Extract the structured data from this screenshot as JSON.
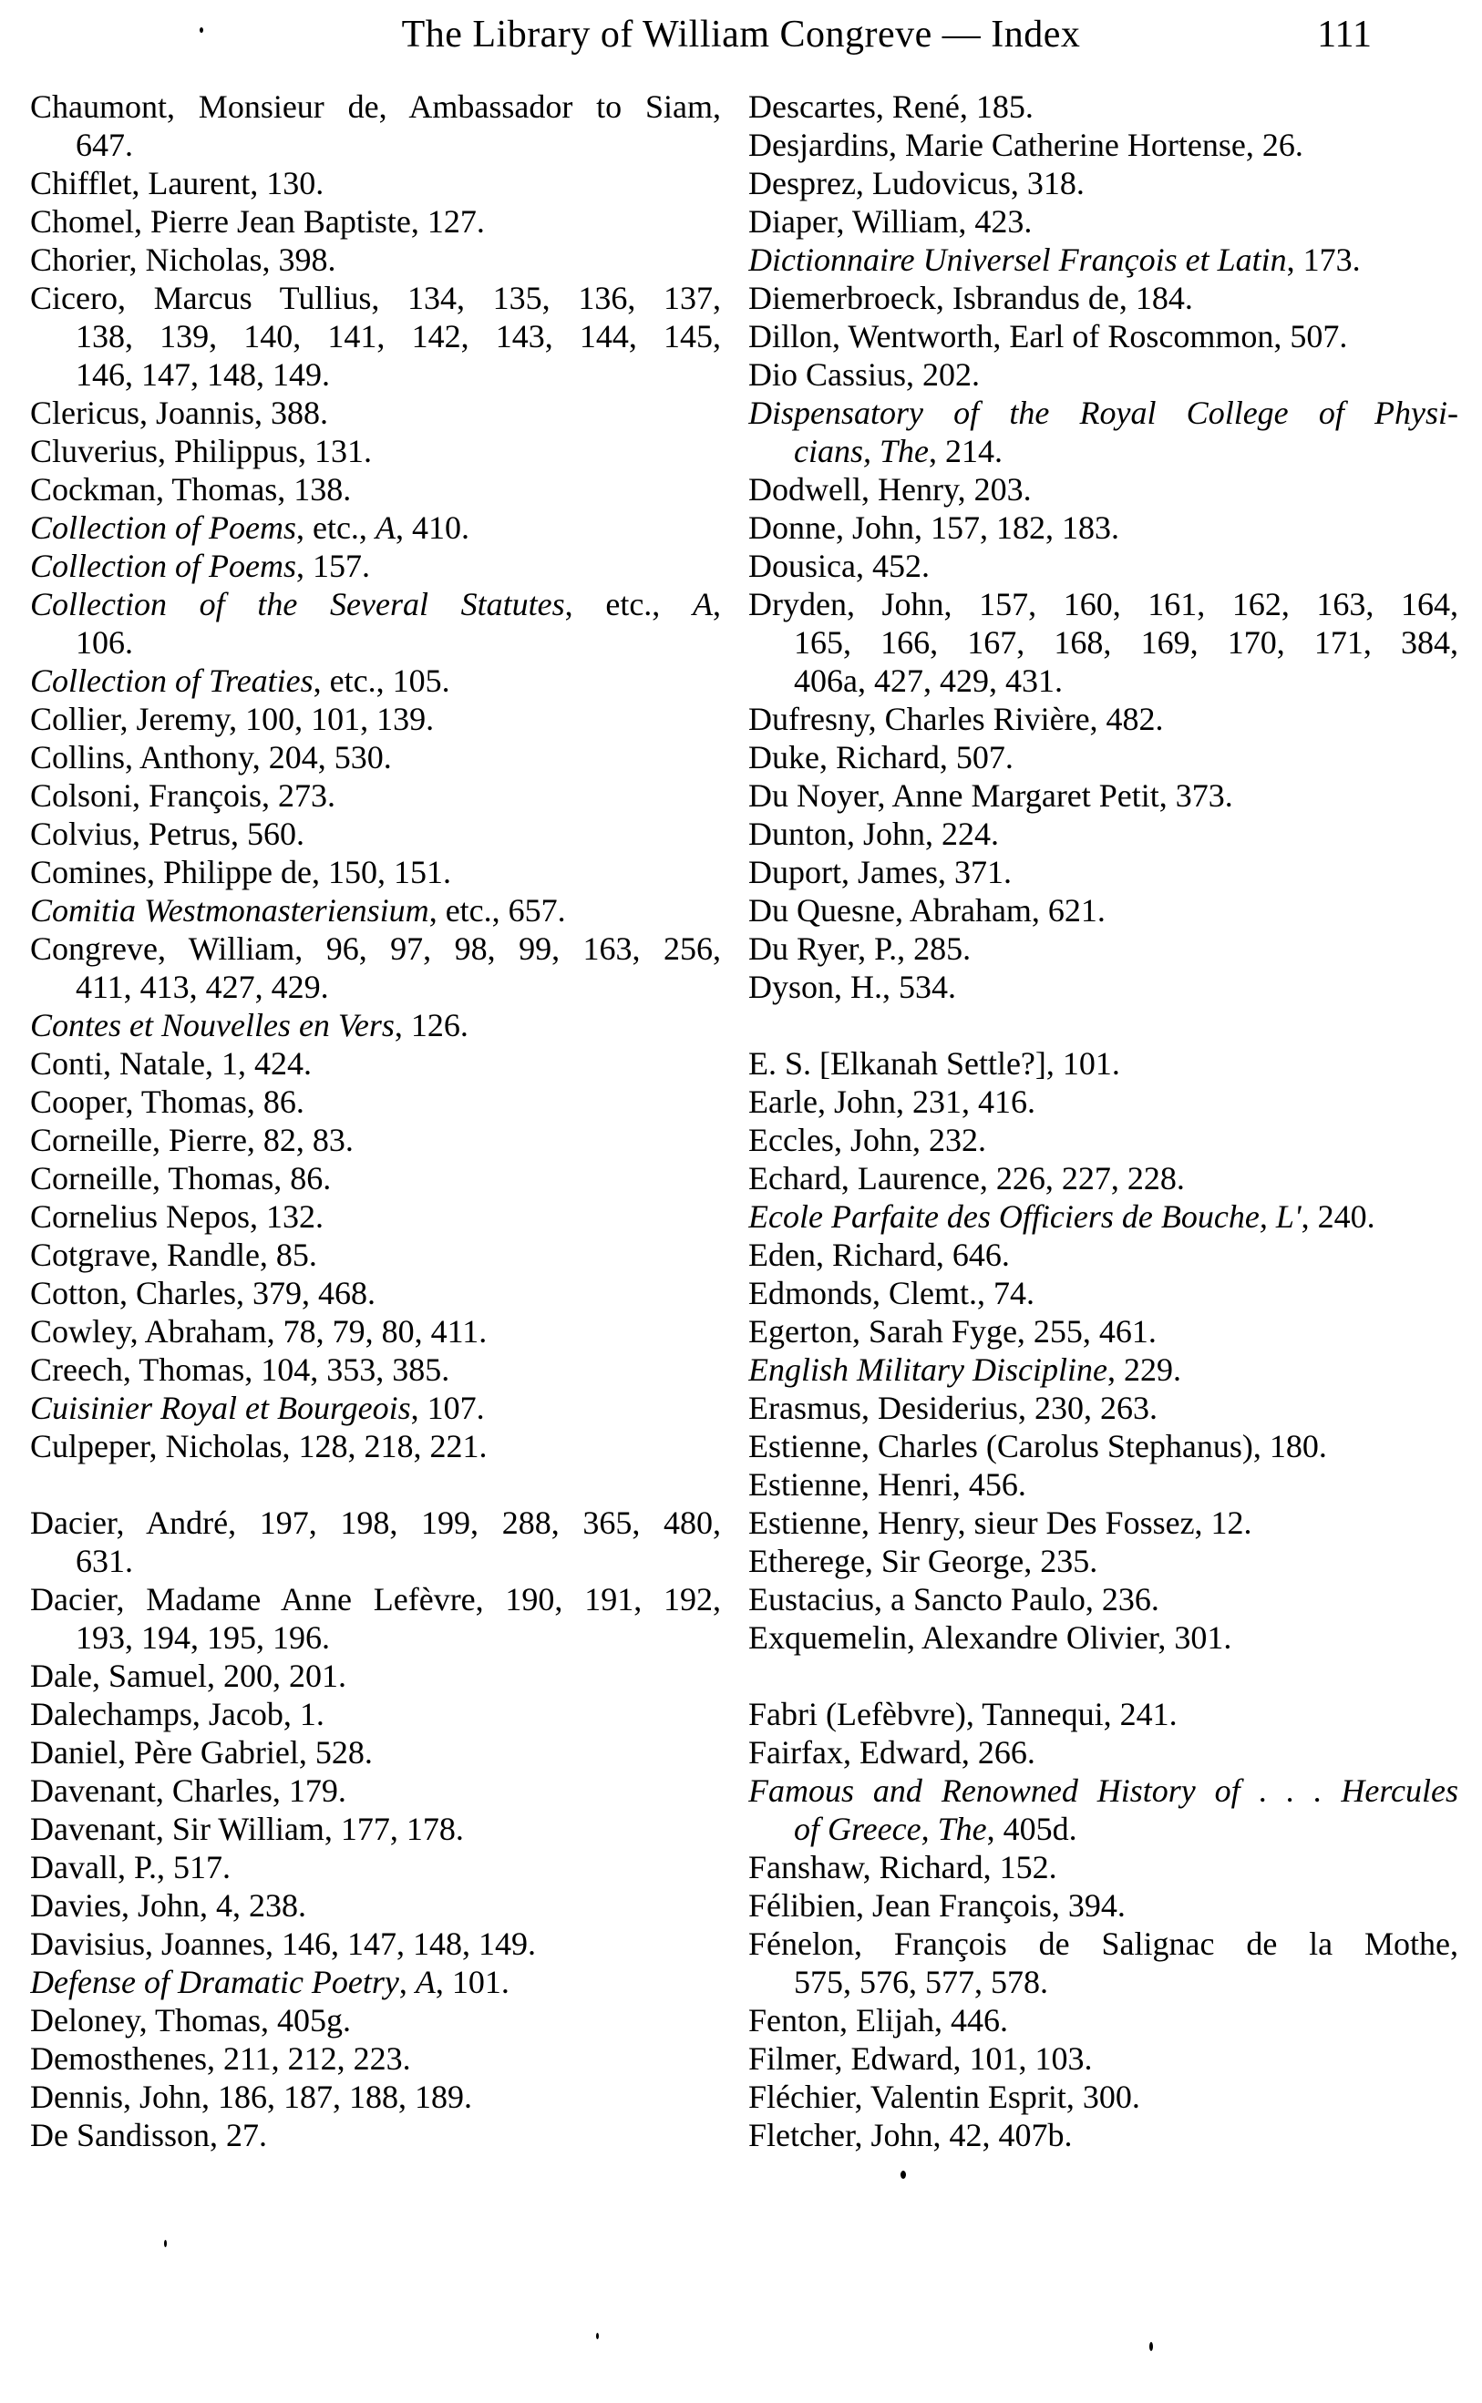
{
  "header": {
    "title": "The Library of William Congreve — Index",
    "page_number": "111"
  },
  "columns": {
    "left": [
      {
        "seg": [
          [
            "Chaumont, Monsieur de, Ambassador to Siam,",
            0
          ]
        ],
        "fill": 1
      },
      {
        "seg": [
          [
            "647.",
            0
          ]
        ],
        "ind": 1
      },
      {
        "seg": [
          [
            "Chifflet, Laurent, 130.",
            0
          ]
        ]
      },
      {
        "seg": [
          [
            "Chomel, Pierre Jean Baptiste, 127.",
            0
          ]
        ]
      },
      {
        "seg": [
          [
            "Chorier, Nicholas, 398.",
            0
          ]
        ]
      },
      {
        "seg": [
          [
            "Cicero, Marcus Tullius, 134, 135, 136, 137,",
            0
          ]
        ],
        "fill": 1
      },
      {
        "seg": [
          [
            "138, 139, 140, 141, 142, 143, 144, 145,",
            0
          ]
        ],
        "ind": 1,
        "fill": 1
      },
      {
        "seg": [
          [
            "146, 147, 148, 149.",
            0
          ]
        ],
        "ind": 1
      },
      {
        "seg": [
          [
            "Clericus, Joannis, 388.",
            0
          ]
        ]
      },
      {
        "seg": [
          [
            "Cluverius, Philippus, 131.",
            0
          ]
        ]
      },
      {
        "seg": [
          [
            "Cockman, Thomas, 138.",
            0
          ]
        ]
      },
      {
        "seg": [
          [
            "Collection of Poems",
            1
          ],
          [
            ", etc., ",
            0
          ],
          [
            "A",
            1
          ],
          [
            ", 410.",
            0
          ]
        ]
      },
      {
        "seg": [
          [
            "Collection of Poems",
            1
          ],
          [
            ", 157.",
            0
          ]
        ]
      },
      {
        "seg": [
          [
            "Collection of the Several Statutes",
            1
          ],
          [
            ", etc., ",
            0
          ],
          [
            "A",
            1
          ],
          [
            ",",
            0
          ]
        ],
        "fill": 1
      },
      {
        "seg": [
          [
            "106.",
            0
          ]
        ],
        "ind": 1
      },
      {
        "seg": [
          [
            "Collection of Treaties",
            1
          ],
          [
            ", etc., 105.",
            0
          ]
        ]
      },
      {
        "seg": [
          [
            "Collier, Jeremy, 100, 101, 139.",
            0
          ]
        ]
      },
      {
        "seg": [
          [
            "Collins, Anthony, 204, 530.",
            0
          ]
        ]
      },
      {
        "seg": [
          [
            "Colsoni, François, 273.",
            0
          ]
        ]
      },
      {
        "seg": [
          [
            "Colvius, Petrus, 560.",
            0
          ]
        ]
      },
      {
        "seg": [
          [
            "Comines, Philippe de, 150, 151.",
            0
          ]
        ]
      },
      {
        "seg": [
          [
            "Comitia Westmonasteriensium",
            1
          ],
          [
            ", etc., 657.",
            0
          ]
        ]
      },
      {
        "seg": [
          [
            "Congreve, William, 96, 97, 98, 99, 163, 256,",
            0
          ]
        ],
        "fill": 1
      },
      {
        "seg": [
          [
            "411, 413, 427, 429.",
            0
          ]
        ],
        "ind": 1
      },
      {
        "seg": [
          [
            "Contes et Nouvelles en Vers",
            1
          ],
          [
            ", 126.",
            0
          ]
        ]
      },
      {
        "seg": [
          [
            "Conti, Natale, 1, 424.",
            0
          ]
        ]
      },
      {
        "seg": [
          [
            "Cooper, Thomas, 86.",
            0
          ]
        ]
      },
      {
        "seg": [
          [
            "Corneille, Pierre, 82, 83.",
            0
          ]
        ]
      },
      {
        "seg": [
          [
            "Corneille, Thomas, 86.",
            0
          ]
        ]
      },
      {
        "seg": [
          [
            "Cornelius Nepos, 132.",
            0
          ]
        ]
      },
      {
        "seg": [
          [
            "Cotgrave, Randle, 85.",
            0
          ]
        ]
      },
      {
        "seg": [
          [
            "Cotton, Charles, 379, 468.",
            0
          ]
        ]
      },
      {
        "seg": [
          [
            "Cowley, Abraham, 78, 79, 80, 411.",
            0
          ]
        ]
      },
      {
        "seg": [
          [
            "Creech, Thomas, 104, 353, 385.",
            0
          ]
        ]
      },
      {
        "seg": [
          [
            "Cuisinier Royal et Bourgeois",
            1
          ],
          [
            ", 107.",
            0
          ]
        ]
      },
      {
        "seg": [
          [
            "Culpeper, Nicholas, 128, 218, 221.",
            0
          ]
        ]
      },
      {
        "gap": 1
      },
      {
        "seg": [
          [
            "Dacier, André, 197, 198, 199, 288, 365, 480,",
            0
          ]
        ],
        "fill": 1
      },
      {
        "seg": [
          [
            "631.",
            0
          ]
        ],
        "ind": 1
      },
      {
        "seg": [
          [
            "Dacier, Madame Anne Lefèvre, 190, 191, 192,",
            0
          ]
        ],
        "fill": 1
      },
      {
        "seg": [
          [
            "193, 194, 195, 196.",
            0
          ]
        ],
        "ind": 1
      },
      {
        "seg": [
          [
            "Dale, Samuel, 200, 201.",
            0
          ]
        ]
      },
      {
        "seg": [
          [
            "Dalechamps, Jacob, 1.",
            0
          ]
        ]
      },
      {
        "seg": [
          [
            "Daniel, Père Gabriel, 528.",
            0
          ]
        ]
      },
      {
        "seg": [
          [
            "Davenant, Charles, 179.",
            0
          ]
        ]
      },
      {
        "seg": [
          [
            "Davenant, Sir William, 177, 178.",
            0
          ]
        ]
      },
      {
        "seg": [
          [
            "Davall, P., 517.",
            0
          ]
        ]
      },
      {
        "seg": [
          [
            "Davies, John, 4, 238.",
            0
          ]
        ]
      },
      {
        "seg": [
          [
            "Davisius, Joannes, 146, 147, 148, 149.",
            0
          ]
        ]
      },
      {
        "seg": [
          [
            "Defense of Dramatic Poetry",
            1
          ],
          [
            ", ",
            0
          ],
          [
            "A",
            1
          ],
          [
            ", 101.",
            0
          ]
        ]
      },
      {
        "seg": [
          [
            "Deloney, Thomas, 405g.",
            0
          ]
        ]
      },
      {
        "seg": [
          [
            "Demosthenes, 211, 212, 223.",
            0
          ]
        ]
      },
      {
        "seg": [
          [
            "Dennis, John, 186, 187, 188, 189.",
            0
          ]
        ]
      },
      {
        "seg": [
          [
            "De Sandisson, 27.",
            0
          ]
        ]
      }
    ],
    "right": [
      {
        "seg": [
          [
            "Descartes, René, 185.",
            0
          ]
        ]
      },
      {
        "seg": [
          [
            "Desjardins, Marie Catherine Hortense, 26.",
            0
          ]
        ]
      },
      {
        "seg": [
          [
            "Desprez, Ludovicus, 318.",
            0
          ]
        ]
      },
      {
        "seg": [
          [
            "Diaper, William, 423.",
            0
          ]
        ]
      },
      {
        "seg": [
          [
            "Dictionnaire Universel François et Latin",
            1
          ],
          [
            ", 173.",
            0
          ]
        ]
      },
      {
        "seg": [
          [
            "Diemerbroeck, Isbrandus de, 184.",
            0
          ]
        ]
      },
      {
        "seg": [
          [
            "Dillon, Wentworth, Earl of Roscommon, 507.",
            0
          ]
        ]
      },
      {
        "seg": [
          [
            "Dio Cassius, 202.",
            0
          ]
        ]
      },
      {
        "seg": [
          [
            "Dispensatory of the Royal College of Physi-",
            1
          ]
        ],
        "fill": 1
      },
      {
        "seg": [
          [
            "cians, The",
            1
          ],
          [
            ", 214.",
            0
          ]
        ],
        "ind": 1
      },
      {
        "seg": [
          [
            "Dodwell, Henry, 203.",
            0
          ]
        ]
      },
      {
        "seg": [
          [
            "Donne, John, 157, 182, 183.",
            0
          ]
        ]
      },
      {
        "seg": [
          [
            "Dousica, 452.",
            0
          ]
        ]
      },
      {
        "seg": [
          [
            "Dryden, John, 157, 160, 161, 162, 163, 164,",
            0
          ]
        ],
        "fill": 1
      },
      {
        "seg": [
          [
            "165, 166, 167, 168, 169, 170, 171, 384,",
            0
          ]
        ],
        "ind": 1,
        "fill": 1
      },
      {
        "seg": [
          [
            "406a, 427, 429, 431.",
            0
          ]
        ],
        "ind": 1
      },
      {
        "seg": [
          [
            "Dufresny, Charles Rivière, 482.",
            0
          ]
        ]
      },
      {
        "seg": [
          [
            "Duke, Richard, 507.",
            0
          ]
        ]
      },
      {
        "seg": [
          [
            "Du Noyer, Anne Margaret Petit, 373.",
            0
          ]
        ]
      },
      {
        "seg": [
          [
            "Dunton, John, 224.",
            0
          ]
        ]
      },
      {
        "seg": [
          [
            "Duport, James, 371.",
            0
          ]
        ]
      },
      {
        "seg": [
          [
            "Du Quesne, Abraham, 621.",
            0
          ]
        ]
      },
      {
        "seg": [
          [
            "Du Ryer, P., 285.",
            0
          ]
        ]
      },
      {
        "seg": [
          [
            "Dyson, H., 534.",
            0
          ]
        ]
      },
      {
        "gap": 1
      },
      {
        "seg": [
          [
            "E. S. [Elkanah Settle?], 101.",
            0
          ]
        ]
      },
      {
        "seg": [
          [
            "Earle, John, 231, 416.",
            0
          ]
        ]
      },
      {
        "seg": [
          [
            "Eccles, John, 232.",
            0
          ]
        ]
      },
      {
        "seg": [
          [
            "Echard, Laurence, 226, 227, 228.",
            0
          ]
        ]
      },
      {
        "seg": [
          [
            "Ecole Parfaite des Officiers de Bouche, L'",
            1
          ],
          [
            ", 240.",
            0
          ]
        ]
      },
      {
        "seg": [
          [
            "Eden, Richard, 646.",
            0
          ]
        ]
      },
      {
        "seg": [
          [
            "Edmonds, Clemt., 74.",
            0
          ]
        ]
      },
      {
        "seg": [
          [
            "Egerton, Sarah Fyge, 255, 461.",
            0
          ]
        ]
      },
      {
        "seg": [
          [
            "English Military Discipline",
            1
          ],
          [
            ", 229.",
            0
          ]
        ]
      },
      {
        "seg": [
          [
            "Erasmus, Desiderius, 230, 263.",
            0
          ]
        ]
      },
      {
        "seg": [
          [
            "Estienne, Charles (Carolus Stephanus), 180.",
            0
          ]
        ]
      },
      {
        "seg": [
          [
            "Estienne, Henri, 456.",
            0
          ]
        ]
      },
      {
        "seg": [
          [
            "Estienne, Henry, sieur Des Fossez, 12.",
            0
          ]
        ]
      },
      {
        "seg": [
          [
            "Etherege, Sir George, 235.",
            0
          ]
        ]
      },
      {
        "seg": [
          [
            "Eustacius, a Sancto Paulo, 236.",
            0
          ]
        ]
      },
      {
        "seg": [
          [
            "Exquemelin, Alexandre Olivier, 301.",
            0
          ]
        ]
      },
      {
        "gap": 1
      },
      {
        "seg": [
          [
            "Fabri (Lefèbvre), Tannequi, 241.",
            0
          ]
        ]
      },
      {
        "seg": [
          [
            "Fairfax, Edward, 266.",
            0
          ]
        ]
      },
      {
        "seg": [
          [
            "Famous and Renowned History of . . . Hercules",
            1
          ]
        ],
        "fill": 1
      },
      {
        "seg": [
          [
            "of Greece, The",
            1
          ],
          [
            ", 405d.",
            0
          ]
        ],
        "ind": 1
      },
      {
        "seg": [
          [
            "Fanshaw, Richard, 152.",
            0
          ]
        ]
      },
      {
        "seg": [
          [
            "Félibien, Jean François, 394.",
            0
          ]
        ]
      },
      {
        "seg": [
          [
            "Fénelon, François de Salignac de la Mothe,",
            0
          ]
        ],
        "fill": 1
      },
      {
        "seg": [
          [
            "575, 576, 577, 578.",
            0
          ]
        ],
        "ind": 1
      },
      {
        "seg": [
          [
            "Fenton, Elijah, 446.",
            0
          ]
        ]
      },
      {
        "seg": [
          [
            "Filmer, Edward, 101, 103.",
            0
          ]
        ]
      },
      {
        "seg": [
          [
            "Fléchier, Valentin Esprit, 300.",
            0
          ]
        ]
      },
      {
        "seg": [
          [
            "Fletcher, John, 42, 407b.",
            0
          ]
        ]
      }
    ]
  }
}
